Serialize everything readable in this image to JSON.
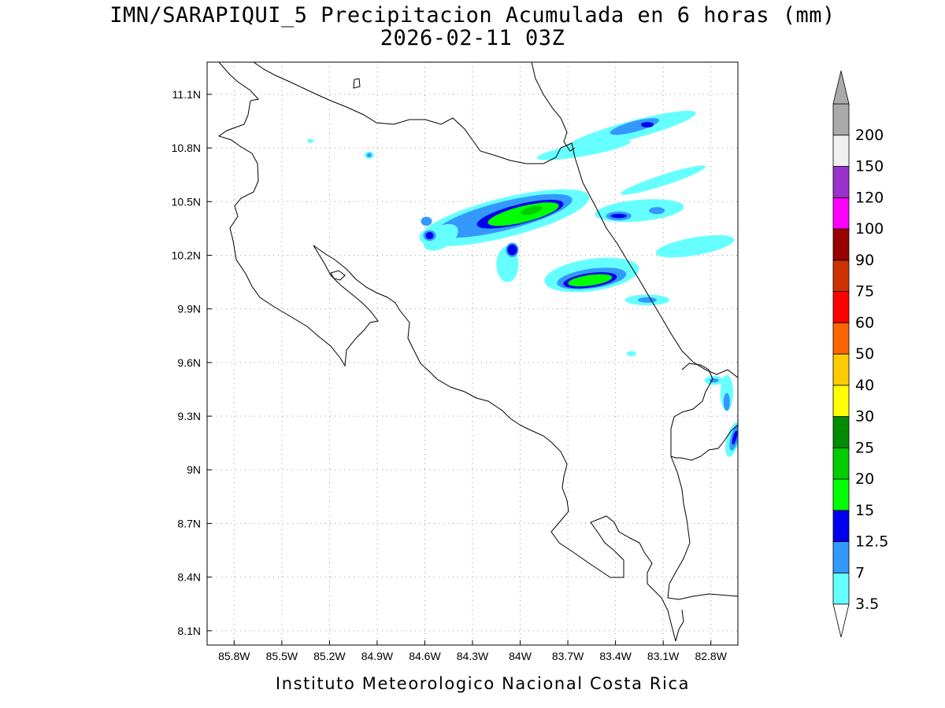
{
  "title_line1": "IMN/SARAPIQUI_5 Precipitacion Acumulada en 6 horas (mm)",
  "title_line2": "2026-02-11 03Z",
  "credit": "Instituto Meteorologico Nacional Costa Rica",
  "axes": {
    "lon_ticks": [
      "85.8W",
      "85.5W",
      "85.2W",
      "84.9W",
      "84.6W",
      "84.3W",
      "84W",
      "83.7W",
      "83.4W",
      "83.1W",
      "82.8W"
    ],
    "lat_ticks": [
      "11.1N",
      "10.8N",
      "10.5N",
      "10.2N",
      "9.9N",
      "9.6N",
      "9.3N",
      "9N",
      "8.7N",
      "8.4N",
      "8.1N"
    ],
    "lon_range": [
      -85.97,
      -82.63
    ],
    "lat_range": [
      8.02,
      11.28
    ],
    "grid": true
  },
  "colorbar": {
    "labels": [
      "3.5",
      "7",
      "12.5",
      "15",
      "20",
      "25",
      "30",
      "40",
      "50",
      "60",
      "75",
      "90",
      "100",
      "120",
      "150",
      "200"
    ],
    "colors": [
      "#66ffff",
      "#3399ff",
      "#0000ee",
      "#00ff00",
      "#00cc00",
      "#008c00",
      "#ffff00",
      "#ffcc00",
      "#ff6600",
      "#ff0000",
      "#cc3300",
      "#990000",
      "#ff00ff",
      "#9933cc",
      "#f0f0f0",
      "#aaaaaa"
    ],
    "upper_arrow_color": "#aaaaaa",
    "lower_arrow_color": "#ffffff"
  },
  "precip_areas": [
    {
      "level": "3.5",
      "lon": -84.1,
      "lat": 10.41,
      "rlon": 0.55,
      "rlat": 0.11,
      "rot": -14
    },
    {
      "level": "7",
      "lon": -84.1,
      "lat": 10.42,
      "rlon": 0.44,
      "rlat": 0.08,
      "rot": -14
    },
    {
      "level": "12.5",
      "lon": -84.0,
      "lat": 10.43,
      "rlon": 0.28,
      "rlat": 0.055,
      "rot": -14
    },
    {
      "level": "15",
      "lon": -83.98,
      "lat": 10.43,
      "rlon": 0.23,
      "rlat": 0.045,
      "rot": -14
    },
    {
      "level": "20",
      "lon": -83.93,
      "lat": 10.45,
      "rlon": 0.07,
      "rlat": 0.02,
      "rot": -14
    },
    {
      "level": "3.5",
      "lon": -83.55,
      "lat": 10.09,
      "rlon": 0.3,
      "rlat": 0.09,
      "rot": -8
    },
    {
      "level": "7",
      "lon": -83.55,
      "lat": 10.07,
      "rlon": 0.22,
      "rlat": 0.055,
      "rot": -8
    },
    {
      "level": "12.5",
      "lon": -83.56,
      "lat": 10.06,
      "rlon": 0.17,
      "rlat": 0.04,
      "rot": -8
    },
    {
      "level": "15",
      "lon": -83.56,
      "lat": 10.06,
      "rlon": 0.14,
      "rlat": 0.03,
      "rot": -8
    },
    {
      "level": "3.5",
      "lon": -83.3,
      "lat": 10.9,
      "rlon": 0.42,
      "rlat": 0.05,
      "rot": -15
    },
    {
      "level": "7",
      "lon": -83.28,
      "lat": 10.92,
      "rlon": 0.16,
      "rlat": 0.03,
      "rot": -15
    },
    {
      "level": "12.5",
      "lon": -83.2,
      "lat": 10.93,
      "rlon": 0.04,
      "rlat": 0.015,
      "rot": 0
    },
    {
      "level": "3.5",
      "lon": -83.25,
      "lat": 10.45,
      "rlon": 0.28,
      "rlat": 0.06,
      "rot": -5
    },
    {
      "level": "7",
      "lon": -83.38,
      "lat": 10.42,
      "rlon": 0.08,
      "rlat": 0.025,
      "rot": 0
    },
    {
      "level": "12.5",
      "lon": -83.38,
      "lat": 10.42,
      "rlon": 0.05,
      "rlat": 0.012,
      "rot": 0
    },
    {
      "level": "7",
      "lon": -83.14,
      "lat": 10.45,
      "rlon": 0.05,
      "rlat": 0.02,
      "rot": 0
    },
    {
      "level": "3.5",
      "lon": -83.1,
      "lat": 10.62,
      "rlon": 0.28,
      "rlat": 0.03,
      "rot": -18
    },
    {
      "level": "3.5",
      "lon": -83.6,
      "lat": 10.79,
      "rlon": 0.3,
      "rlat": 0.035,
      "rot": -10
    },
    {
      "level": "3.5",
      "lon": -82.9,
      "lat": 10.25,
      "rlon": 0.25,
      "rlat": 0.05,
      "rot": -10
    },
    {
      "level": "3.5",
      "lon": -83.2,
      "lat": 9.95,
      "rlon": 0.14,
      "rlat": 0.03,
      "rot": 0
    },
    {
      "level": "7",
      "lon": -83.2,
      "lat": 9.95,
      "rlon": 0.06,
      "rlat": 0.015,
      "rot": 0
    },
    {
      "level": "3.5",
      "lon": -84.5,
      "lat": 10.3,
      "rlon": 0.12,
      "rlat": 0.06,
      "rot": -30
    },
    {
      "level": "7",
      "lon": -84.57,
      "lat": 10.31,
      "rlon": 0.04,
      "rlat": 0.03,
      "rot": 0
    },
    {
      "level": "12.5",
      "lon": -84.57,
      "lat": 10.31,
      "rlon": 0.025,
      "rlat": 0.02,
      "rot": 0
    },
    {
      "level": "7",
      "lon": -84.59,
      "lat": 10.39,
      "rlon": 0.035,
      "rlat": 0.025,
      "rot": 0
    },
    {
      "level": "3.5",
      "lon": -84.08,
      "lat": 10.15,
      "rlon": 0.07,
      "rlat": 0.1,
      "rot": 0
    },
    {
      "level": "7",
      "lon": -84.05,
      "lat": 10.23,
      "rlon": 0.04,
      "rlat": 0.04,
      "rot": 0
    },
    {
      "level": "12.5",
      "lon": -84.05,
      "lat": 10.23,
      "rlon": 0.03,
      "rlat": 0.03,
      "rot": 0
    },
    {
      "level": "3.5",
      "lon": -84.95,
      "lat": 10.76,
      "rlon": 0.03,
      "rlat": 0.02,
      "rot": 0
    },
    {
      "level": "7",
      "lon": -84.95,
      "lat": 10.76,
      "rlon": 0.015,
      "rlat": 0.012,
      "rot": 0
    },
    {
      "level": "3.5",
      "lon": -85.32,
      "lat": 10.84,
      "rlon": 0.02,
      "rlat": 0.012,
      "rot": 0
    },
    {
      "level": "3.5",
      "lon": -82.7,
      "lat": 9.43,
      "rlon": 0.04,
      "rlat": 0.1,
      "rot": 0
    },
    {
      "level": "7",
      "lon": -82.7,
      "lat": 9.38,
      "rlon": 0.02,
      "rlat": 0.05,
      "rot": 0
    },
    {
      "level": "3.5",
      "lon": -82.78,
      "lat": 9.5,
      "rlon": 0.06,
      "rlat": 0.025,
      "rot": 0
    },
    {
      "level": "7",
      "lon": -82.78,
      "lat": 9.5,
      "rlon": 0.03,
      "rlat": 0.012,
      "rot": 0
    },
    {
      "level": "3.5",
      "lon": -82.66,
      "lat": 9.17,
      "rlon": 0.04,
      "rlat": 0.1,
      "rot": 15
    },
    {
      "level": "7",
      "lon": -82.65,
      "lat": 9.18,
      "rlon": 0.025,
      "rlat": 0.075,
      "rot": 15
    },
    {
      "level": "12.5",
      "lon": -82.65,
      "lat": 9.18,
      "rlon": 0.012,
      "rlat": 0.04,
      "rot": 15
    },
    {
      "level": "3.5",
      "lon": -83.3,
      "lat": 9.65,
      "rlon": 0.03,
      "rlat": 0.015,
      "rot": 0
    }
  ]
}
